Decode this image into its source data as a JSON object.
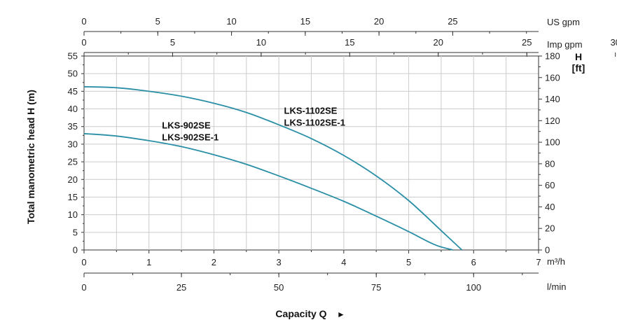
{
  "chart_data": {
    "type": "line",
    "x_units": {
      "us_gpm": "US gpm",
      "imp_gpm": "Imp gpm",
      "m3h": "m³/h",
      "lmin": "l/min"
    },
    "y_right_unit": "H [ft]",
    "ylabel": "Total manometric head H (m)",
    "xlabel": "Capacity Q",
    "xlabel_arrow": "►",
    "xlim": [
      0,
      7
    ],
    "ylim": [
      0,
      55
    ],
    "y_right_lim": [
      0,
      180
    ],
    "grid": true,
    "x_ticks_m3h": [
      "0",
      "1",
      "2",
      "3",
      "4",
      "5",
      "6",
      "7"
    ],
    "x_ticks_lmin": [
      "0",
      "25",
      "50",
      "75",
      "100"
    ],
    "x_ticks_us_gpm": [
      "0",
      "5",
      "10",
      "15",
      "20",
      "25"
    ],
    "x_ticks_imp_gpm": [
      "0",
      "5",
      "10",
      "15",
      "20",
      "25",
      "30"
    ],
    "y_ticks_m": [
      "0",
      "5",
      "10",
      "15",
      "20",
      "25",
      "30",
      "35",
      "40",
      "45",
      "50",
      "55"
    ],
    "y_ticks_ft": [
      "0",
      "20",
      "40",
      "60",
      "80",
      "100",
      "120",
      "140",
      "160",
      "180"
    ],
    "series": [
      {
        "label_lines": [
          "LKS-1102SE",
          "LKS-1102SE-1"
        ],
        "color": "#2a8fa6",
        "points": [
          {
            "x": 0,
            "y": 46.3
          },
          {
            "x": 0.5,
            "y": 46.0
          },
          {
            "x": 1,
            "y": 45.0
          },
          {
            "x": 1.5,
            "y": 43.6
          },
          {
            "x": 2,
            "y": 41.6
          },
          {
            "x": 2.5,
            "y": 39.0
          },
          {
            "x": 3,
            "y": 35.5
          },
          {
            "x": 3.5,
            "y": 31.6
          },
          {
            "x": 4,
            "y": 26.8
          },
          {
            "x": 4.5,
            "y": 21.0
          },
          {
            "x": 5,
            "y": 14.0
          },
          {
            "x": 5.5,
            "y": 5.5
          },
          {
            "x": 5.82,
            "y": 0
          }
        ]
      },
      {
        "label_lines": [
          "LKS-902SE",
          "LKS-902SE-1"
        ],
        "color": "#2a8fa6",
        "points": [
          {
            "x": 0,
            "y": 33.0
          },
          {
            "x": 0.5,
            "y": 32.3
          },
          {
            "x": 1,
            "y": 31.0
          },
          {
            "x": 1.5,
            "y": 29.3
          },
          {
            "x": 2,
            "y": 27.0
          },
          {
            "x": 2.5,
            "y": 24.3
          },
          {
            "x": 3,
            "y": 21.0
          },
          {
            "x": 3.5,
            "y": 17.5
          },
          {
            "x": 4,
            "y": 13.8
          },
          {
            "x": 4.5,
            "y": 9.6
          },
          {
            "x": 5,
            "y": 5.2
          },
          {
            "x": 5.4,
            "y": 1.5
          },
          {
            "x": 5.68,
            "y": 0
          }
        ]
      }
    ]
  }
}
